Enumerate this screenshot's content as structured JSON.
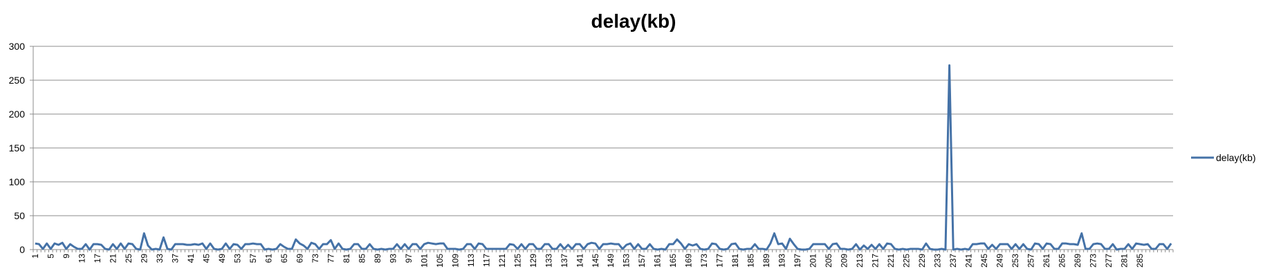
{
  "chart_data": {
    "type": "line",
    "title": "delay(kb)",
    "xlabel": "",
    "ylabel": "",
    "ylim": [
      0,
      300
    ],
    "yticks": [
      0,
      50,
      100,
      150,
      200,
      250,
      300
    ],
    "x_range": [
      1,
      287
    ],
    "x_tick_start": 1,
    "x_tick_step": 4,
    "grid": "horizontal",
    "legend_position": "right",
    "series": [
      {
        "name": "delay(kb)",
        "color": "#4572a7",
        "values": [
          9,
          8,
          1,
          9,
          1,
          9,
          7,
          10,
          1,
          8,
          4,
          1,
          1,
          8,
          0,
          8,
          8,
          7,
          1,
          0,
          8,
          1,
          9,
          1,
          9,
          8,
          1,
          0,
          24,
          6,
          0,
          1,
          0,
          18,
          1,
          0,
          8,
          8,
          8,
          7,
          7,
          8,
          7,
          9,
          1,
          9,
          1,
          0,
          1,
          9,
          1,
          8,
          7,
          1,
          8,
          8,
          9,
          8,
          8,
          0,
          1,
          0,
          1,
          8,
          4,
          1,
          1,
          15,
          9,
          6,
          1,
          10,
          8,
          1,
          8,
          8,
          14,
          1,
          9,
          1,
          0,
          1,
          8,
          8,
          1,
          1,
          8,
          1,
          0,
          1,
          0,
          1,
          1,
          8,
          1,
          8,
          1,
          8,
          8,
          1,
          8,
          10,
          9,
          8,
          9,
          9,
          1,
          1,
          1,
          0,
          1,
          8,
          8,
          1,
          9,
          8,
          1,
          1,
          1,
          1,
          1,
          1,
          8,
          7,
          1,
          8,
          1,
          8,
          8,
          1,
          1,
          8,
          8,
          1,
          1,
          8,
          1,
          7,
          1,
          8,
          8,
          1,
          8,
          10,
          9,
          1,
          8,
          8,
          9,
          8,
          8,
          1,
          7,
          9,
          1,
          8,
          1,
          1,
          8,
          1,
          0,
          1,
          0,
          8,
          8,
          15,
          9,
          1,
          8,
          6,
          8,
          1,
          0,
          1,
          9,
          8,
          1,
          0,
          1,
          8,
          9,
          1,
          0,
          1,
          1,
          8,
          1,
          1,
          0,
          9,
          24,
          8,
          9,
          1,
          16,
          8,
          1,
          0,
          0,
          1,
          8,
          8,
          8,
          8,
          1,
          8,
          9,
          1,
          1,
          0,
          1,
          8,
          0,
          6,
          1,
          7,
          1,
          8,
          1,
          9,
          8,
          1,
          0,
          1,
          0,
          1,
          1,
          1,
          0,
          9,
          1,
          0,
          0,
          1,
          0,
          272,
          0,
          1,
          0,
          1,
          0,
          8,
          8,
          9,
          9,
          1,
          7,
          1,
          8,
          8,
          8,
          1,
          8,
          1,
          8,
          1,
          0,
          9,
          8,
          1,
          9,
          8,
          1,
          1,
          9,
          9,
          8,
          8,
          7,
          24,
          1,
          1,
          8,
          9,
          8,
          1,
          1,
          8,
          0,
          1,
          1,
          8,
          1,
          9,
          8,
          7,
          8,
          1,
          1,
          8,
          8,
          1,
          9
        ]
      }
    ]
  }
}
